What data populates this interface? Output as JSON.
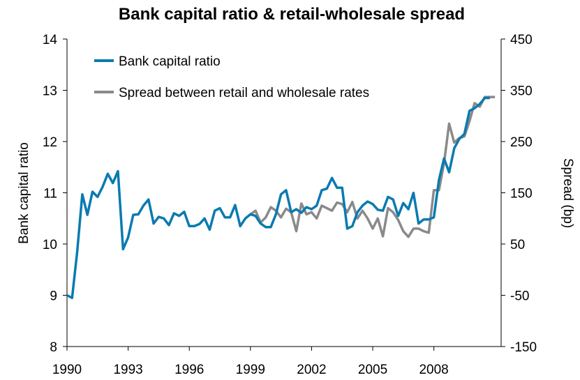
{
  "chart_data": {
    "type": "line",
    "title": "Bank capital ratio & retail-wholesale spread",
    "ylabel": "Bank capital ratio",
    "y2label": "Spread (bp)",
    "xlim": [
      1990,
      2011.3
    ],
    "ylim": [
      8,
      14
    ],
    "y2lim": [
      -150,
      450
    ],
    "xticks": [
      "1990",
      "1993",
      "1996",
      "1999",
      "2002",
      "2005",
      "2008"
    ],
    "yticks": [
      "8",
      "9",
      "10",
      "11",
      "12",
      "13",
      "14"
    ],
    "y2ticks": [
      "-150",
      "-50",
      "50",
      "150",
      "250",
      "350",
      "450"
    ],
    "legend_position": "top-left",
    "series": [
      {
        "name": "Bank capital ratio",
        "axis": "left",
        "color": "#0A7AB0",
        "x": [
          1990.0,
          1990.25,
          1990.5,
          1990.75,
          1991.0,
          1991.25,
          1991.5,
          1991.75,
          1992.0,
          1992.25,
          1992.5,
          1992.75,
          1993.0,
          1993.25,
          1993.5,
          1993.75,
          1994.0,
          1994.25,
          1994.5,
          1994.75,
          1995.0,
          1995.25,
          1995.5,
          1995.75,
          1996.0,
          1996.25,
          1996.5,
          1996.75,
          1997.0,
          1997.25,
          1997.5,
          1997.75,
          1998.0,
          1998.25,
          1998.5,
          1998.75,
          1999.0,
          1999.25,
          1999.5,
          1999.75,
          2000.0,
          2000.25,
          2000.5,
          2000.75,
          2001.0,
          2001.25,
          2001.5,
          2001.75,
          2002.0,
          2002.25,
          2002.5,
          2002.75,
          2003.0,
          2003.25,
          2003.5,
          2003.75,
          2004.0,
          2004.25,
          2004.5,
          2004.75,
          2005.0,
          2005.25,
          2005.5,
          2005.75,
          2006.0,
          2006.25,
          2006.5,
          2006.75,
          2007.0,
          2007.25,
          2007.5,
          2007.75,
          2008.0,
          2008.25,
          2008.5,
          2008.75,
          2009.0,
          2009.25,
          2009.5,
          2009.75,
          2010.0,
          2010.25,
          2010.5,
          2010.75
        ],
        "values": [
          9.0,
          8.95,
          9.85,
          10.97,
          10.57,
          11.02,
          10.92,
          11.12,
          11.37,
          11.19,
          11.42,
          9.9,
          10.13,
          10.57,
          10.58,
          10.75,
          10.87,
          10.4,
          10.53,
          10.5,
          10.37,
          10.6,
          10.55,
          10.63,
          10.35,
          10.35,
          10.39,
          10.5,
          10.28,
          10.65,
          10.7,
          10.52,
          10.52,
          10.76,
          10.35,
          10.5,
          10.58,
          10.55,
          10.4,
          10.33,
          10.33,
          10.58,
          10.97,
          11.05,
          10.62,
          10.68,
          10.61,
          10.72,
          10.68,
          10.75,
          11.05,
          11.08,
          11.29,
          11.1,
          11.1,
          10.3,
          10.35,
          10.62,
          10.75,
          10.83,
          10.78,
          10.67,
          10.65,
          10.92,
          10.87,
          10.55,
          10.8,
          10.68,
          11.0,
          10.4,
          10.48,
          10.48,
          10.52,
          11.25,
          11.67,
          11.4,
          11.87,
          12.05,
          12.15,
          12.6,
          12.65,
          12.73,
          12.85,
          12.85
        ]
      },
      {
        "name": "Spread between retail and wholesale rates",
        "axis": "right",
        "color": "#8A8A8A",
        "x": [
          1999.0,
          1999.25,
          1999.5,
          1999.75,
          2000.0,
          2000.25,
          2000.5,
          2000.75,
          2001.0,
          2001.25,
          2001.5,
          2001.75,
          2002.0,
          2002.25,
          2002.5,
          2002.75,
          2003.0,
          2003.25,
          2003.5,
          2003.75,
          2004.0,
          2004.25,
          2004.5,
          2004.75,
          2005.0,
          2005.25,
          2005.5,
          2005.75,
          2006.0,
          2006.25,
          2006.5,
          2006.75,
          2007.0,
          2007.25,
          2007.5,
          2007.75,
          2008.0,
          2008.25,
          2008.5,
          2008.75,
          2009.0,
          2009.25,
          2009.5,
          2009.75,
          2010.0,
          2010.25,
          2010.5,
          2010.75,
          2011.0
        ],
        "values": [
          108,
          115,
          92,
          102,
          122,
          115,
          102,
          119,
          112,
          75,
          129,
          108,
          112,
          100,
          125,
          120,
          115,
          131,
          128,
          112,
          132,
          100,
          115,
          100,
          80,
          100,
          65,
          120,
          112,
          97,
          75,
          64,
          80,
          80,
          75,
          72,
          155,
          155,
          208,
          285,
          248,
          257,
          260,
          290,
          325,
          318,
          337,
          337,
          337
        ]
      }
    ]
  }
}
